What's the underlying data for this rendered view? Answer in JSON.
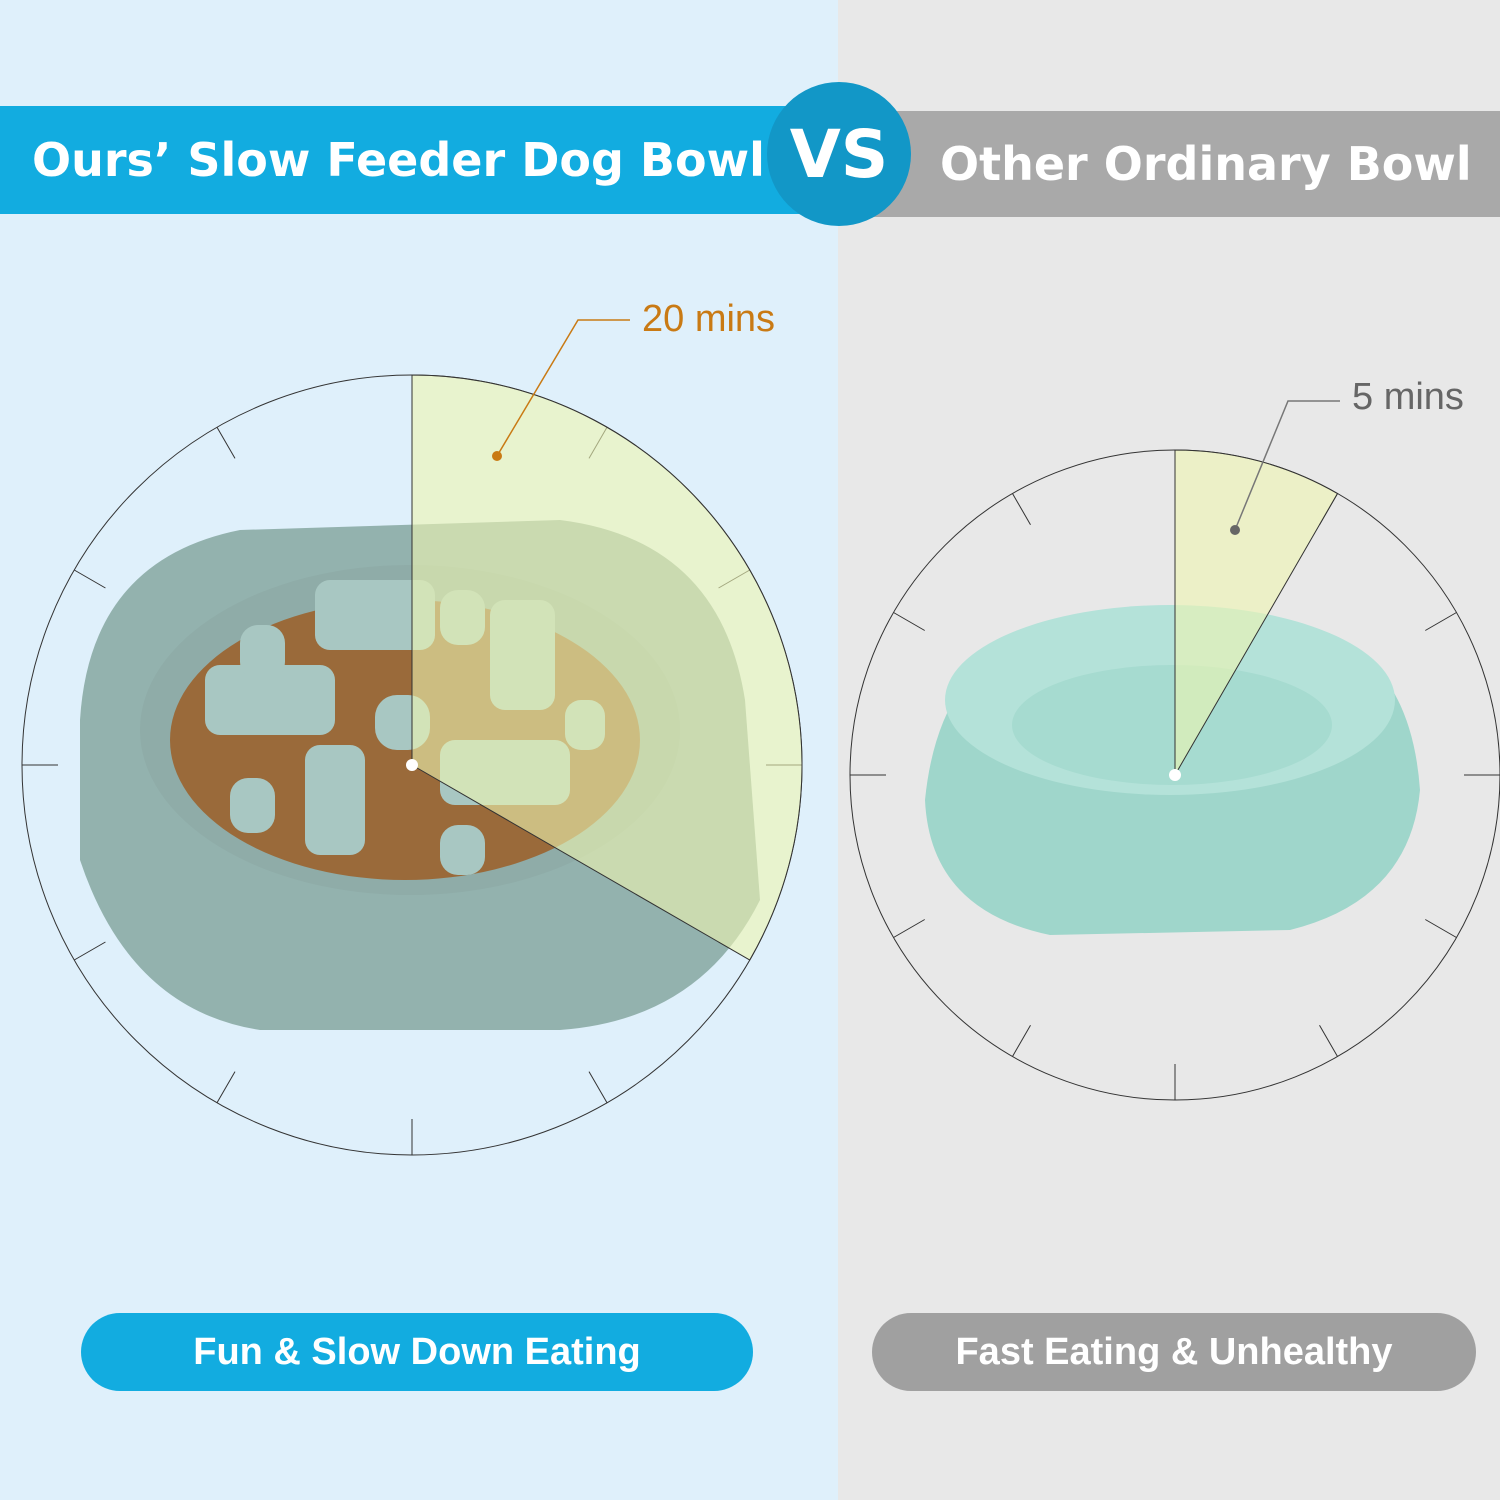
{
  "header": {
    "left_title": "Ours’ Slow Feeder Dog Bowl",
    "vs": "VS",
    "right_title": "Other Ordinary Bowl"
  },
  "left": {
    "time_label": "20 mins",
    "minutes": 20,
    "caption": "Fun & Slow Down Eating"
  },
  "right": {
    "time_label": "5 mins",
    "minutes": 5,
    "caption": "Fast Eating & Unhealthy"
  },
  "colors": {
    "left_bg": "#dff0fb",
    "right_bg": "#e8e8e8",
    "blue": "#12ace0",
    "vs_circle": "#1297c7",
    "gray": "#a9a9a9",
    "sector": "#eef5c0",
    "left_label": "#c97a14"
  }
}
